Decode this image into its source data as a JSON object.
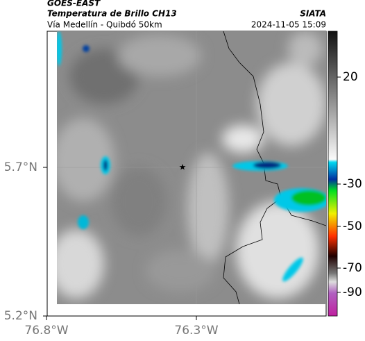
{
  "header": {
    "source": "GOES-EAST",
    "title": "Temperatura de Brillo CH13",
    "credit": "SIATA",
    "route": "Vía Medellín - Quibdó 50km",
    "timestamp": "2024-11-05 15:09"
  },
  "map": {
    "lat_labels": [
      "5.7°N",
      "5.2°N"
    ],
    "lon_labels": [
      "76.8°W",
      "76.3°W"
    ]
  },
  "colorbar": {
    "ticks": [
      20,
      -30,
      -50,
      -70,
      -90
    ]
  }
}
